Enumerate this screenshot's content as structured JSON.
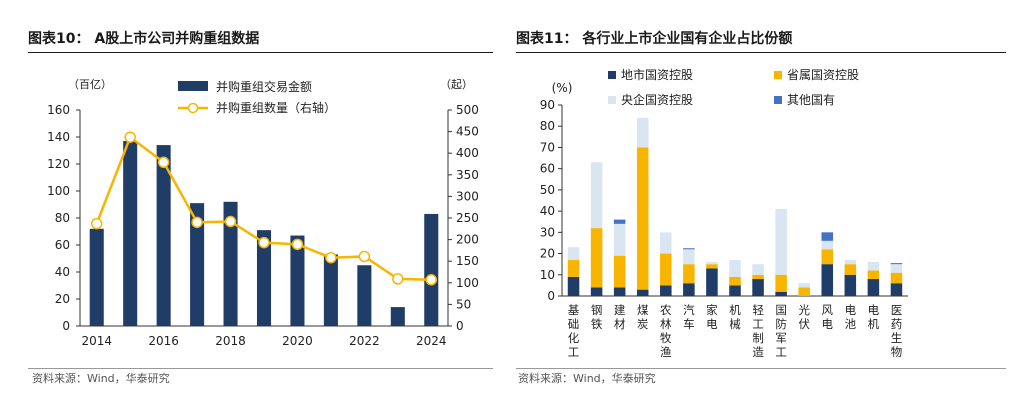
{
  "charts": {
    "left": {
      "title": "图表10： A股上市公司并购重组数据",
      "source": "资料来源：Wind，华泰研究"
    },
    "right": {
      "title": "图表11： 各行业上市企业国有企业占比份额",
      "source": "资料来源：Wind，华泰研究"
    }
  },
  "colors": {
    "navy": "#1f3d66",
    "gold": "#f7b500",
    "lightblue": "#d9e6f2",
    "blue": "#4472c4",
    "axis": "#333333"
  },
  "chart_data": [
    {
      "type": "bar",
      "title": "图表10： A股上市公司并购重组数据",
      "x": [
        2014,
        2015,
        2016,
        2017,
        2018,
        2019,
        2020,
        2021,
        2022,
        2023,
        2024
      ],
      "xticks": [
        "2014",
        "2016",
        "2018",
        "2020",
        "2022",
        "2024"
      ],
      "ylabel_left": "（百亿）",
      "ylabel_right": "（起）",
      "ylim_left": [
        0,
        160
      ],
      "ylim_right": [
        0,
        500
      ],
      "yticks_left": [
        0,
        20,
        40,
        60,
        80,
        100,
        120,
        140,
        160
      ],
      "yticks_right": [
        0,
        50,
        100,
        150,
        200,
        250,
        300,
        350,
        400,
        450,
        500
      ],
      "legend_position": "top-center",
      "series": [
        {
          "name": "并购重组交易金额",
          "type": "bar",
          "axis": "left",
          "values": [
            72,
            137,
            134,
            91,
            92,
            71,
            67,
            53,
            45,
            14,
            83
          ]
        },
        {
          "name": "并购重组数量（右轴）",
          "type": "line",
          "axis": "right",
          "values": [
            237,
            437,
            379,
            240,
            242,
            193,
            189,
            158,
            161,
            109,
            107
          ]
        }
      ]
    },
    {
      "type": "bar",
      "stacked": true,
      "title": "图表11： 各行业上市企业国有企业占比份额",
      "ylabel": "(%)",
      "ylim": [
        0,
        90
      ],
      "yticks": [
        0,
        10,
        20,
        30,
        40,
        50,
        60,
        70,
        80,
        90
      ],
      "legend_position": "top",
      "categories": [
        "基础化工",
        "钢铁",
        "建材",
        "煤炭",
        "农林牧渔",
        "汽车",
        "家电",
        "机械",
        "轻工制造",
        "国防军工",
        "光伏",
        "风电",
        "电池",
        "电机",
        "医药生物"
      ],
      "series": [
        {
          "name": "地市国资控股",
          "values": [
            9,
            4,
            4,
            3,
            5,
            6,
            13,
            5,
            8,
            2,
            0,
            15,
            10,
            8,
            6
          ]
        },
        {
          "name": "省属国资控股",
          "values": [
            8,
            28,
            15,
            67,
            15,
            9,
            2,
            4,
            2,
            8,
            4,
            7,
            5,
            4,
            5
          ]
        },
        {
          "name": "央企国资控股",
          "values": [
            6,
            31,
            15,
            14,
            10,
            7,
            1,
            8,
            5,
            31,
            2,
            4,
            2,
            4,
            4
          ]
        },
        {
          "name": "其他国有",
          "values": [
            0,
            0,
            2,
            0,
            0,
            0.5,
            0,
            0,
            0,
            0,
            0,
            4,
            0,
            0,
            0.5
          ]
        }
      ]
    }
  ]
}
